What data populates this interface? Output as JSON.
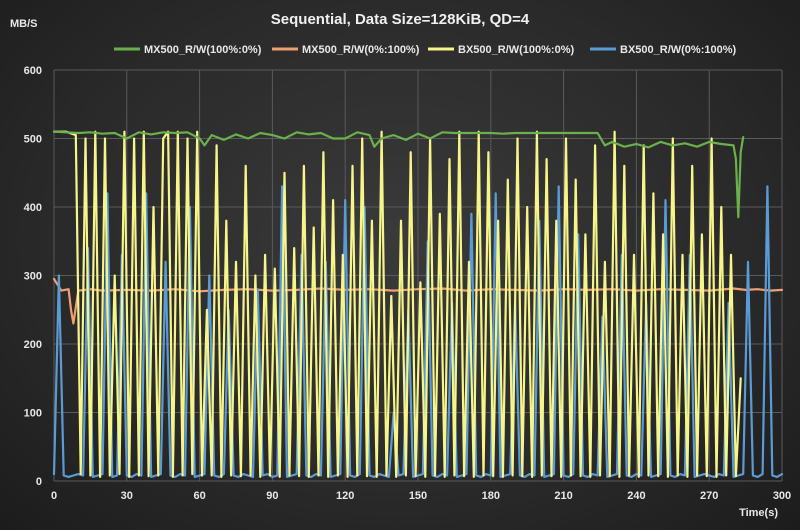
{
  "chart_data": {
    "type": "line",
    "title": "Sequential,  Data Size=128KiB,  QD=4",
    "ylabel": "MB/S",
    "xlabel": "Time(s)",
    "xlim": [
      0,
      300
    ],
    "ylim": [
      0,
      600
    ],
    "xticks": [
      0,
      30,
      60,
      90,
      120,
      150,
      180,
      210,
      240,
      270,
      300
    ],
    "yticks": [
      0,
      100,
      200,
      300,
      400,
      500,
      600
    ],
    "grid": true,
    "legend_position": "top",
    "series": [
      {
        "name": "MX500_R/W(100%:0%)",
        "color": "#6ab04c",
        "x": [
          0,
          5,
          10,
          15,
          20,
          25,
          30,
          35,
          40,
          45,
          50,
          55,
          60,
          62,
          65,
          70,
          75,
          80,
          85,
          90,
          95,
          100,
          105,
          110,
          115,
          120,
          125,
          130,
          132,
          135,
          140,
          145,
          150,
          155,
          160,
          165,
          170,
          175,
          180,
          185,
          190,
          195,
          200,
          205,
          210,
          215,
          220,
          224,
          227,
          230,
          235,
          240,
          245,
          250,
          255,
          260,
          265,
          270,
          275,
          280,
          281,
          282,
          283,
          284
        ],
        "y": [
          510,
          509,
          508,
          509,
          507,
          508,
          500,
          509,
          506,
          509,
          508,
          509,
          500,
          490,
          505,
          498,
          506,
          500,
          508,
          505,
          500,
          509,
          506,
          508,
          500,
          500,
          509,
          505,
          488,
          500,
          505,
          498,
          507,
          500,
          509,
          508,
          508,
          508,
          508,
          507,
          508,
          508,
          508,
          508,
          508,
          508,
          508,
          508,
          490,
          495,
          488,
          492,
          487,
          495,
          490,
          493,
          488,
          495,
          492,
          490,
          470,
          385,
          480,
          502
        ]
      },
      {
        "name": "MX500_R/W(0%:100%)",
        "color": "#f0a070",
        "x": [
          0,
          3,
          6,
          7,
          8,
          10,
          15,
          20,
          30,
          40,
          50,
          60,
          70,
          80,
          90,
          100,
          110,
          120,
          130,
          140,
          150,
          160,
          170,
          180,
          190,
          200,
          210,
          220,
          230,
          240,
          250,
          260,
          270,
          280,
          285,
          290,
          295,
          300
        ],
        "y": [
          295,
          278,
          280,
          250,
          230,
          278,
          280,
          278,
          279,
          278,
          280,
          277,
          279,
          280,
          278,
          279,
          281,
          279,
          280,
          278,
          280,
          281,
          278,
          280,
          279,
          278,
          280,
          279,
          280,
          278,
          280,
          279,
          278,
          281,
          279,
          280,
          278,
          279
        ]
      },
      {
        "name": "BX500_R/W(100%:0%)",
        "color": "#f5f58a",
        "x": [
          0,
          5,
          9,
          11,
          13,
          15,
          17,
          19,
          21,
          23,
          25,
          27,
          29,
          31,
          33,
          35,
          37,
          39,
          41,
          43,
          45,
          47,
          49,
          51,
          53,
          55,
          57,
          59,
          61,
          63,
          65,
          67,
          69,
          71,
          73,
          75,
          77,
          79,
          81,
          83,
          85,
          87,
          89,
          91,
          93,
          95,
          97,
          99,
          101,
          103,
          105,
          107,
          109,
          111,
          113,
          115,
          117,
          119,
          121,
          123,
          125,
          127,
          129,
          131,
          133,
          135,
          137,
          139,
          141,
          143,
          145,
          147,
          149,
          151,
          153,
          155,
          157,
          159,
          161,
          163,
          165,
          167,
          169,
          171,
          173,
          175,
          177,
          179,
          181,
          183,
          185,
          187,
          189,
          191,
          193,
          195,
          197,
          199,
          201,
          203,
          205,
          207,
          209,
          211,
          213,
          215,
          217,
          219,
          221,
          223,
          225,
          227,
          229,
          231,
          233,
          235,
          237,
          239,
          241,
          243,
          245,
          247,
          249,
          251,
          253,
          255,
          257,
          259,
          261,
          263,
          265,
          267,
          269,
          271,
          273,
          275,
          277,
          279,
          281,
          283
        ],
        "y": [
          510,
          510,
          505,
          10,
          500,
          8,
          510,
          6,
          500,
          8,
          300,
          10,
          510,
          6,
          500,
          8,
          510,
          7,
          400,
          8,
          500,
          510,
          6,
          510,
          8,
          500,
          10,
          510,
          8,
          250,
          8,
          490,
          6,
          380,
          8,
          320,
          7,
          460,
          8,
          300,
          6,
          330,
          8,
          310,
          6,
          450,
          8,
          340,
          7,
          460,
          6,
          370,
          8,
          480,
          6,
          410,
          8,
          330,
          6,
          460,
          8,
          500,
          7,
          380,
          6,
          510,
          8,
          270,
          6,
          380,
          8,
          480,
          7,
          290,
          6,
          500,
          8,
          390,
          6,
          470,
          8,
          510,
          7,
          320,
          6,
          510,
          8,
          480,
          7,
          380,
          6,
          440,
          8,
          500,
          7,
          400,
          6,
          510,
          8,
          470,
          7,
          380,
          6,
          500,
          8,
          440,
          7,
          360,
          6,
          490,
          8,
          320,
          7,
          510,
          6,
          460,
          8,
          330,
          6,
          490,
          8,
          420,
          7,
          360,
          6,
          500,
          8,
          330,
          6,
          460,
          8,
          360,
          7,
          500,
          6,
          400,
          8,
          330,
          7,
          150
        ]
      },
      {
        "name": "BX500_R/W(0%:100%)",
        "color": "#5b9bd5",
        "x": [
          0,
          2,
          4,
          6,
          8,
          10,
          12,
          14,
          16,
          18,
          20,
          22,
          24,
          26,
          28,
          30,
          32,
          34,
          36,
          38,
          40,
          42,
          44,
          46,
          48,
          50,
          52,
          54,
          56,
          58,
          60,
          62,
          64,
          66,
          68,
          70,
          72,
          74,
          76,
          78,
          80,
          82,
          84,
          86,
          88,
          90,
          92,
          94,
          96,
          98,
          100,
          102,
          104,
          106,
          108,
          110,
          112,
          114,
          116,
          118,
          120,
          122,
          124,
          126,
          128,
          130,
          132,
          134,
          136,
          138,
          140,
          142,
          144,
          146,
          148,
          150,
          152,
          154,
          156,
          158,
          160,
          162,
          164,
          166,
          168,
          170,
          172,
          174,
          176,
          178,
          180,
          182,
          184,
          186,
          188,
          190,
          192,
          194,
          196,
          198,
          200,
          202,
          204,
          206,
          208,
          210,
          212,
          214,
          216,
          218,
          220,
          222,
          224,
          226,
          228,
          230,
          232,
          234,
          236,
          238,
          240,
          242,
          244,
          246,
          248,
          250,
          252,
          254,
          256,
          258,
          260,
          262,
          264,
          266,
          268,
          270,
          272,
          274,
          276,
          278,
          280,
          282,
          284,
          286,
          288,
          290,
          292,
          294,
          296,
          298,
          300
        ],
        "y": [
          10,
          300,
          8,
          6,
          8,
          10,
          8,
          340,
          6,
          8,
          10,
          420,
          6,
          8,
          330,
          8,
          6,
          10,
          8,
          420,
          6,
          8,
          10,
          320,
          8,
          6,
          10,
          8,
          400,
          6,
          8,
          10,
          300,
          8,
          6,
          10,
          250,
          8,
          6,
          10,
          8,
          6,
          280,
          8,
          10,
          6,
          8,
          430,
          6,
          8,
          10,
          330,
          8,
          6,
          10,
          8,
          320,
          6,
          8,
          10,
          410,
          8,
          6,
          10,
          400,
          8,
          6,
          10,
          8,
          6,
          100,
          8,
          10,
          250,
          6,
          8,
          10,
          350,
          8,
          6,
          10,
          8,
          260,
          6,
          8,
          10,
          390,
          8,
          6,
          10,
          8,
          420,
          6,
          8,
          10,
          260,
          8,
          6,
          10,
          8,
          380,
          6,
          8,
          10,
          430,
          8,
          6,
          10,
          360,
          8,
          6,
          10,
          8,
          240,
          6,
          8,
          10,
          330,
          8,
          6,
          10,
          8,
          260,
          6,
          8,
          10,
          410,
          8,
          6,
          10,
          8,
          330,
          6,
          8,
          10,
          8,
          6,
          10,
          8,
          260,
          6,
          8,
          10,
          320,
          8,
          6,
          10,
          430,
          8,
          6,
          10
        ]
      }
    ]
  }
}
